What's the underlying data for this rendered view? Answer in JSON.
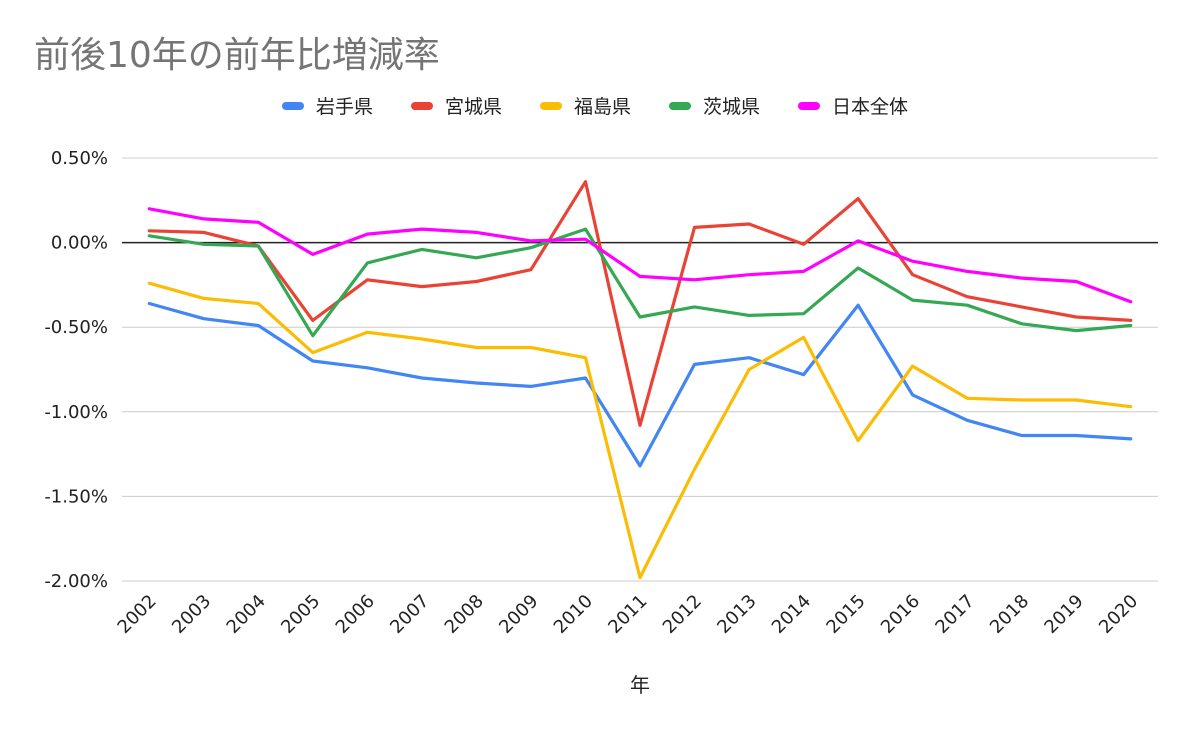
{
  "chart_data": {
    "type": "line",
    "title": "前後10年の前年比増減率",
    "xlabel": "年",
    "ylabel": "",
    "categories": [
      "2002",
      "2003",
      "2004",
      "2005",
      "2006",
      "2007",
      "2008",
      "2009",
      "2010",
      "2011",
      "2012",
      "2013",
      "2014",
      "2015",
      "2016",
      "2017",
      "2018",
      "2019",
      "2020"
    ],
    "y_ticks": [
      "0.50%",
      "0.00%",
      "-0.50%",
      "-1.00%",
      "-1.50%",
      "-2.00%"
    ],
    "ylim": [
      -2.0,
      0.5
    ],
    "grid": true,
    "legend_position": "top",
    "series": [
      {
        "name": "岩手県",
        "color": "#4285F4",
        "values": [
          -0.36,
          -0.45,
          -0.49,
          -0.7,
          -0.74,
          -0.8,
          -0.83,
          -0.85,
          -0.8,
          -1.32,
          -0.72,
          -0.68,
          -0.78,
          -0.37,
          -0.9,
          -1.05,
          -1.14,
          -1.14,
          -1.16
        ]
      },
      {
        "name": "宮城県",
        "color": "#EA4335",
        "values": [
          0.07,
          0.06,
          -0.02,
          -0.46,
          -0.22,
          -0.26,
          -0.23,
          -0.16,
          0.36,
          -1.08,
          0.09,
          0.11,
          -0.01,
          0.26,
          -0.19,
          -0.32,
          -0.38,
          -0.44,
          -0.46
        ]
      },
      {
        "name": "福島県",
        "color": "#FBBC04",
        "values": [
          -0.24,
          -0.33,
          -0.36,
          -0.65,
          -0.53,
          -0.57,
          -0.62,
          -0.62,
          -0.68,
          -1.98,
          -1.34,
          -0.75,
          -0.56,
          -1.17,
          -0.73,
          -0.92,
          -0.93,
          -0.93,
          -0.97
        ]
      },
      {
        "name": "茨城県",
        "color": "#34A853",
        "values": [
          0.04,
          -0.01,
          -0.02,
          -0.55,
          -0.12,
          -0.04,
          -0.09,
          -0.03,
          0.08,
          -0.44,
          -0.38,
          -0.43,
          -0.42,
          -0.15,
          -0.34,
          -0.37,
          -0.48,
          -0.52,
          -0.49
        ]
      },
      {
        "name": "日本全体",
        "color": "#FF00FF",
        "values": [
          0.2,
          0.14,
          0.12,
          -0.07,
          0.05,
          0.08,
          0.06,
          0.01,
          0.02,
          -0.2,
          -0.22,
          -0.19,
          -0.17,
          0.01,
          -0.11,
          -0.17,
          -0.21,
          -0.23,
          -0.35
        ]
      }
    ]
  }
}
